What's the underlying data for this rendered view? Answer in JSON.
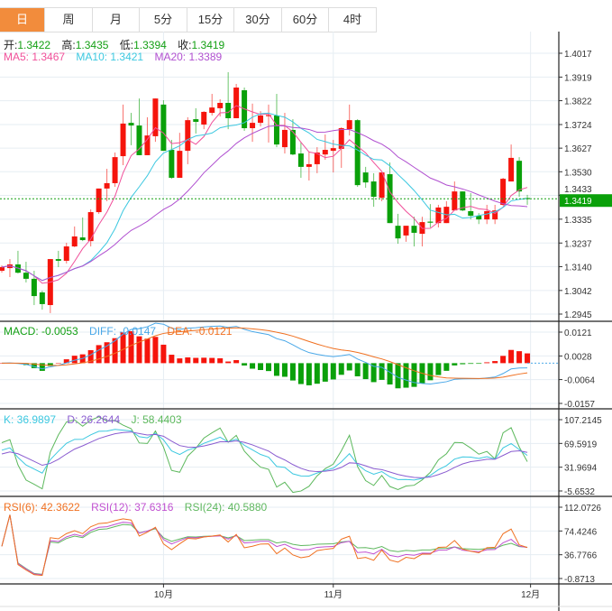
{
  "tabs": [
    "日",
    "周",
    "月",
    "5分",
    "15分",
    "30分",
    "60分",
    "4时"
  ],
  "active_tab": 0,
  "ohlc_legend": {
    "open_label": "开:",
    "open": "1.3422",
    "high_label": "高:",
    "high": "1.3435",
    "low_label": "低:",
    "low": "1.3394",
    "close_label": "收:",
    "close": "1.3419"
  },
  "ma_legend": {
    "ma5": "MA5: 1.3467",
    "ma10": "MA10: 1.3421",
    "ma20": "MA20: 1.3389"
  },
  "macd_legend": {
    "macd": "MACD: -0.0053",
    "diff": "DIFF: -0.0147",
    "dea": "DEA: -0.0121"
  },
  "kdj_legend": {
    "k": "K: 36.9897",
    "d": "D: 26.2644",
    "j": "J: 58.4403"
  },
  "rsi_legend": {
    "rsi6": "RSI(6): 42.3622",
    "rsi12": "RSI(12): 37.6316",
    "rsi24": "RSI(24): 40.5880"
  },
  "colors": {
    "up": "#f5140c",
    "down": "#0aa00a",
    "ma5": "#f0509a",
    "ma10": "#3cc8e0",
    "ma20": "#b050d0",
    "diff": "#4aa8e8",
    "dea": "#f07020",
    "k": "#3cc8e0",
    "d": "#8a5cd0",
    "j": "#5cb85c",
    "rsi6": "#f07020",
    "rsi12": "#c050d0",
    "rsi24": "#60b860",
    "tab_active": "#f28c3c"
  },
  "chart_data": {
    "type": "candlestick",
    "price_ticks": [
      "1.4017",
      "1.3919",
      "1.3822",
      "1.3724",
      "1.3627",
      "1.3530",
      "1.3433",
      "1.3335",
      "1.3237",
      "1.3140",
      "1.3042",
      "1.2945"
    ],
    "current_price": "1.3419",
    "x_labels": [
      {
        "label": "10月",
        "index": 20
      },
      {
        "label": "11月",
        "index": 41
      },
      {
        "label": "12月",
        "index": 65.4
      }
    ],
    "candles": [
      [
        1.3123,
        1.3145,
        1.3115,
        1.3138
      ],
      [
        1.3134,
        1.3171,
        1.3097,
        1.3149
      ],
      [
        1.3149,
        1.3205,
        1.3112,
        1.3115
      ],
      [
        1.3115,
        1.316,
        1.3075,
        1.309
      ],
      [
        1.309,
        1.3123,
        1.2982,
        1.3019
      ],
      [
        1.3034,
        1.3041,
        1.2963,
        1.2986
      ],
      [
        1.2982,
        1.3171,
        1.2949,
        1.3171
      ],
      [
        1.3171,
        1.3205,
        1.3138,
        1.3164
      ],
      [
        1.3164,
        1.3238,
        1.3153,
        1.3223
      ],
      [
        1.3223,
        1.3305,
        1.322,
        1.3264
      ],
      [
        1.326,
        1.3342,
        1.3245,
        1.3249
      ],
      [
        1.3245,
        1.3375,
        1.3223,
        1.3364
      ],
      [
        1.3364,
        1.3461,
        1.3357,
        1.3461
      ],
      [
        1.3461,
        1.3542,
        1.3409,
        1.3483
      ],
      [
        1.3483,
        1.3609,
        1.3468,
        1.359
      ],
      [
        1.3594,
        1.3806,
        1.3557,
        1.3728
      ],
      [
        1.3731,
        1.3772,
        1.3639,
        1.372
      ],
      [
        1.372,
        1.3831,
        1.3598,
        1.3598
      ],
      [
        1.3598,
        1.3754,
        1.3598,
        1.3679
      ],
      [
        1.3676,
        1.3831,
        1.3653,
        1.3831
      ],
      [
        1.3806,
        1.3824,
        1.3616,
        1.3616
      ],
      [
        1.362,
        1.3661,
        1.3501,
        1.3505
      ],
      [
        1.3505,
        1.369,
        1.3505,
        1.3616
      ],
      [
        1.3616,
        1.3754,
        1.3561,
        1.3742
      ],
      [
        1.3746,
        1.3791,
        1.3687,
        1.3735
      ],
      [
        1.3724,
        1.3779,
        1.3705,
        1.3776
      ],
      [
        1.3772,
        1.385,
        1.3761,
        1.3794
      ],
      [
        1.3791,
        1.3828,
        1.3757,
        1.3813
      ],
      [
        1.3813,
        1.3939,
        1.3705,
        1.375
      ],
      [
        1.375,
        1.3891,
        1.375,
        1.3876
      ],
      [
        1.3865,
        1.3876,
        1.3698,
        1.3709
      ],
      [
        1.3709,
        1.381,
        1.3653,
        1.3731
      ],
      [
        1.3731,
        1.3779,
        1.3716,
        1.3761
      ],
      [
        1.3759,
        1.3806,
        1.365,
        1.3763
      ],
      [
        1.3761,
        1.385,
        1.3631,
        1.3642
      ],
      [
        1.3631,
        1.3772,
        1.3605,
        1.3702
      ],
      [
        1.3702,
        1.3746,
        1.3598,
        1.3601
      ],
      [
        1.3605,
        1.365,
        1.3505,
        1.355
      ],
      [
        1.355,
        1.3613,
        1.3494,
        1.3561
      ],
      [
        1.3561,
        1.3631,
        1.3524,
        1.3609
      ],
      [
        1.3601,
        1.3683,
        1.3579,
        1.362
      ],
      [
        1.3616,
        1.3661,
        1.3527,
        1.3627
      ],
      [
        1.3624,
        1.3713,
        1.3546,
        1.3709
      ],
      [
        1.3705,
        1.3806,
        1.3679,
        1.3742
      ],
      [
        1.3742,
        1.3746,
        1.3468,
        1.3475
      ],
      [
        1.3527,
        1.355,
        1.3464,
        1.3486
      ],
      [
        1.349,
        1.3524,
        1.3386,
        1.3427
      ],
      [
        1.3423,
        1.3527,
        1.3409,
        1.3527
      ],
      [
        1.352,
        1.3568,
        1.3319,
        1.3319
      ],
      [
        1.3308,
        1.3357,
        1.3234,
        1.3256
      ],
      [
        1.3268,
        1.3308,
        1.3242,
        1.3308
      ],
      [
        1.3308,
        1.3345,
        1.3223,
        1.3279
      ],
      [
        1.3275,
        1.3345,
        1.3223,
        1.3323
      ],
      [
        1.3325,
        1.3397,
        1.3301,
        1.3321
      ],
      [
        1.3319,
        1.3394,
        1.3301,
        1.3383
      ],
      [
        1.3319,
        1.3409,
        1.3319,
        1.3386
      ],
      [
        1.3371,
        1.349,
        1.3371,
        1.3449
      ],
      [
        1.3449,
        1.3449,
        1.3368,
        1.3371
      ],
      [
        1.3368,
        1.3442,
        1.3334,
        1.3349
      ],
      [
        1.3349,
        1.336,
        1.3315,
        1.3334
      ],
      [
        1.3334,
        1.3394,
        1.3315,
        1.3368
      ],
      [
        1.3334,
        1.3394,
        1.3315,
        1.3371
      ],
      [
        1.3394,
        1.3505,
        1.339,
        1.3501
      ],
      [
        1.349,
        1.3642,
        1.349,
        1.3587
      ],
      [
        1.3575,
        1.359,
        1.3427,
        1.3449
      ],
      [
        1.3422,
        1.3435,
        1.3394,
        1.3419
      ]
    ],
    "macd_ticks": [
      "0.0121",
      "0.0028",
      "-0.0064",
      "-0.0157"
    ],
    "kdj_ticks": [
      "107.2145",
      "69.5919",
      "31.9694",
      "-5.6532"
    ],
    "rsi_ticks": [
      "112.0726",
      "74.4246",
      "36.7766",
      "-0.8713"
    ]
  }
}
